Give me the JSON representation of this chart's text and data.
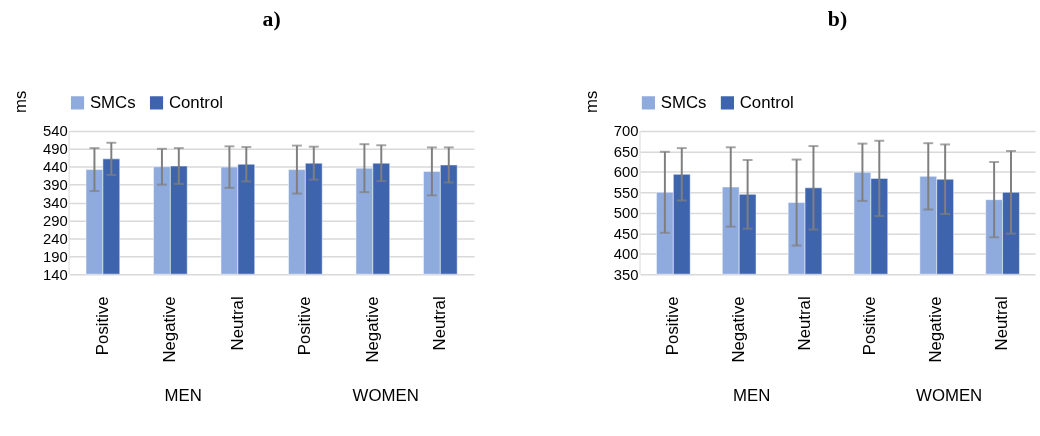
{
  "chart_data": [
    {
      "type": "bar",
      "title": "a)",
      "ylabel": "ms",
      "categories": [
        "Positive",
        "Negative",
        "Neutral",
        "Positive",
        "Negative",
        "Neutral"
      ],
      "series": [
        {
          "name": "SMCs",
          "color": "#8faadc",
          "values": [
            432,
            440,
            439,
            432,
            436,
            427
          ],
          "errors": [
            60,
            50,
            58,
            67,
            67,
            67
          ]
        },
        {
          "name": "Control",
          "color": "#3f64ae",
          "values": [
            462,
            442,
            447,
            450,
            450,
            445
          ],
          "errors": [
            45,
            50,
            48,
            46,
            50,
            49
          ]
        }
      ],
      "ylim": [
        140,
        540
      ],
      "yticks": [
        140,
        190,
        240,
        290,
        340,
        390,
        440,
        490,
        540
      ],
      "grid": "y",
      "legend": "top",
      "annotations": [
        "MEN",
        "WOMEN"
      ]
    },
    {
      "type": "bar",
      "title": "b)",
      "ylabel": "ms",
      "categories": [
        "Positive",
        "Negative",
        "Neutral",
        "Positive",
        "Negative",
        "Neutral"
      ],
      "series": [
        {
          "name": "SMCs",
          "color": "#8faadc",
          "values": [
            550,
            563,
            525,
            599,
            589,
            532
          ],
          "errors": [
            99,
            97,
            105,
            70,
            81,
            92
          ]
        },
        {
          "name": "Control",
          "color": "#3f64ae",
          "values": [
            594,
            545,
            561,
            584,
            582,
            550
          ],
          "errors": [
            64,
            84,
            102,
            92,
            85,
            101
          ]
        }
      ],
      "ylim": [
        350,
        700
      ],
      "yticks": [
        350,
        400,
        450,
        500,
        550,
        600,
        650,
        700
      ],
      "grid": "y",
      "legend": "top",
      "annotations": [
        "MEN",
        "WOMEN"
      ]
    }
  ]
}
